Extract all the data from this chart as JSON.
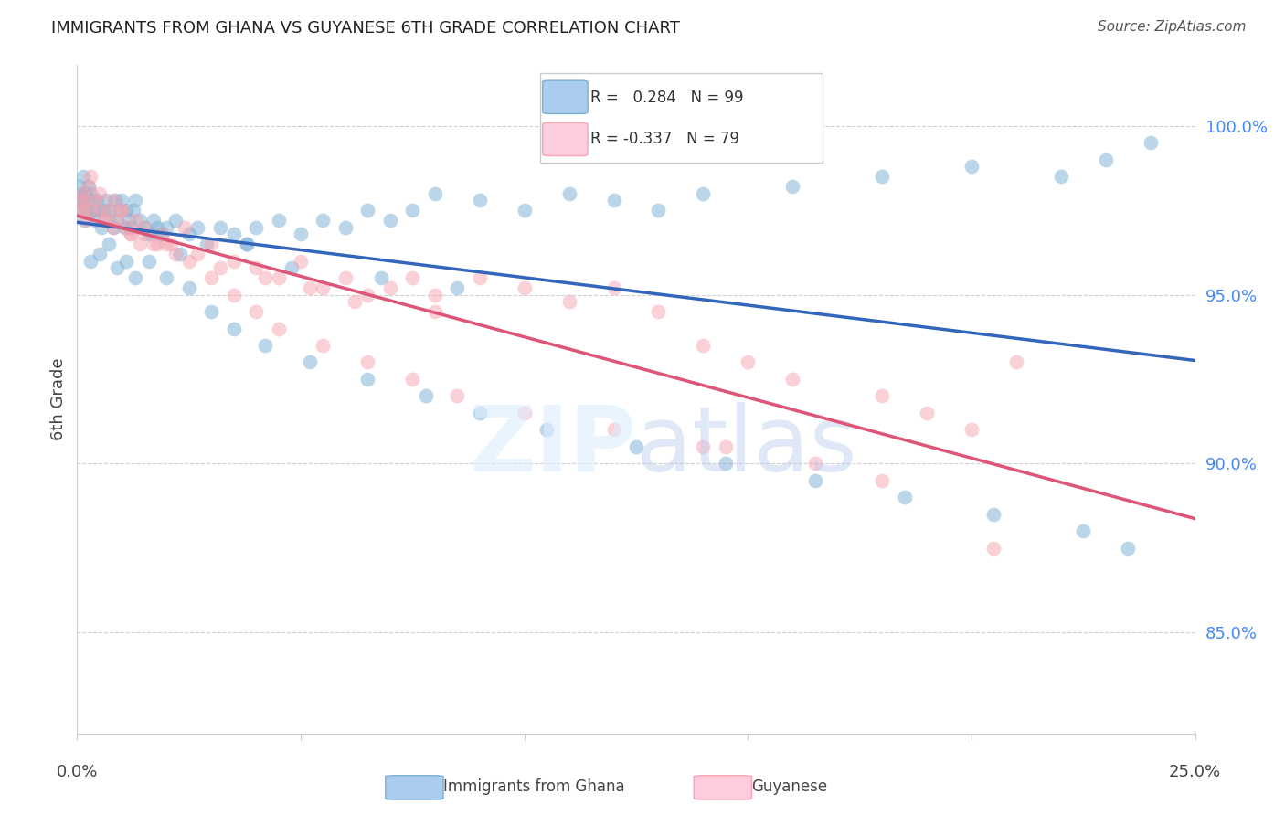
{
  "title": "IMMIGRANTS FROM GHANA VS GUYANESE 6TH GRADE CORRELATION CHART",
  "source": "Source: ZipAtlas.com",
  "ylabel": "6th Grade",
  "ylim": [
    82.0,
    101.8
  ],
  "xlim": [
    0.0,
    25.0
  ],
  "yticks": [
    85.0,
    90.0,
    95.0,
    100.0
  ],
  "legend_r_blue": "0.284",
  "legend_n_blue": "99",
  "legend_r_pink": "-0.337",
  "legend_n_pink": "79",
  "blue_scatter_color": "#7BAFD4",
  "pink_scatter_color": "#F4A4B0",
  "blue_line_color": "#3366BB",
  "pink_line_color": "#DD5577",
  "blue_x": [
    0.04,
    0.06,
    0.08,
    0.1,
    0.12,
    0.14,
    0.16,
    0.18,
    0.2,
    0.22,
    0.25,
    0.28,
    0.3,
    0.35,
    0.38,
    0.4,
    0.45,
    0.5,
    0.55,
    0.6,
    0.65,
    0.7,
    0.75,
    0.8,
    0.85,
    0.9,
    0.95,
    1.0,
    1.05,
    1.1,
    1.15,
    1.2,
    1.25,
    1.3,
    1.4,
    1.5,
    1.6,
    1.7,
    1.8,
    1.9,
    2.0,
    2.2,
    2.5,
    2.7,
    2.9,
    3.2,
    3.5,
    3.8,
    4.0,
    4.5,
    5.0,
    5.5,
    6.0,
    6.5,
    7.0,
    7.5,
    8.0,
    9.0,
    10.0,
    11.0,
    12.0,
    13.0,
    14.0,
    16.0,
    18.0,
    20.0,
    22.0,
    23.0,
    24.0,
    0.3,
    0.5,
    0.7,
    0.9,
    1.1,
    1.3,
    1.6,
    2.0,
    2.5,
    3.0,
    3.5,
    4.2,
    5.2,
    6.5,
    7.8,
    9.0,
    10.5,
    12.5,
    14.5,
    16.5,
    18.5,
    20.5,
    22.5,
    23.5,
    1.8,
    2.3,
    3.8,
    4.8,
    6.8,
    8.5
  ],
  "blue_y": [
    97.8,
    98.2,
    97.5,
    98.0,
    97.8,
    98.5,
    97.2,
    98.0,
    97.5,
    97.8,
    98.2,
    97.5,
    98.0,
    97.8,
    97.5,
    97.2,
    97.8,
    97.5,
    97.0,
    97.5,
    97.8,
    97.2,
    97.5,
    97.0,
    97.8,
    97.2,
    97.5,
    97.8,
    97.0,
    97.5,
    97.2,
    97.0,
    97.5,
    97.8,
    97.2,
    97.0,
    96.8,
    97.2,
    97.0,
    96.8,
    97.0,
    97.2,
    96.8,
    97.0,
    96.5,
    97.0,
    96.8,
    96.5,
    97.0,
    97.2,
    96.8,
    97.2,
    97.0,
    97.5,
    97.2,
    97.5,
    98.0,
    97.8,
    97.5,
    98.0,
    97.8,
    97.5,
    98.0,
    98.2,
    98.5,
    98.8,
    98.5,
    99.0,
    99.5,
    96.0,
    96.2,
    96.5,
    95.8,
    96.0,
    95.5,
    96.0,
    95.5,
    95.2,
    94.5,
    94.0,
    93.5,
    93.0,
    92.5,
    92.0,
    91.5,
    91.0,
    90.5,
    90.0,
    89.5,
    89.0,
    88.5,
    88.0,
    87.5,
    96.8,
    96.2,
    96.5,
    95.8,
    95.5,
    95.2
  ],
  "pink_x": [
    0.04,
    0.08,
    0.12,
    0.16,
    0.2,
    0.25,
    0.3,
    0.4,
    0.5,
    0.6,
    0.7,
    0.8,
    0.9,
    1.0,
    1.1,
    1.2,
    1.3,
    1.4,
    1.5,
    1.7,
    1.9,
    2.1,
    2.4,
    2.7,
    3.0,
    3.5,
    4.0,
    4.5,
    5.0,
    5.5,
    6.0,
    6.5,
    7.0,
    7.5,
    8.0,
    9.0,
    10.0,
    11.0,
    12.0,
    13.0,
    14.0,
    15.0,
    16.0,
    18.0,
    19.0,
    20.0,
    21.0,
    0.3,
    0.5,
    0.8,
    1.0,
    1.5,
    2.0,
    2.5,
    3.0,
    3.5,
    4.0,
    4.5,
    5.5,
    6.5,
    7.5,
    8.5,
    10.0,
    12.0,
    14.0,
    16.5,
    18.0,
    20.5,
    0.2,
    0.6,
    1.2,
    1.8,
    2.2,
    3.2,
    4.2,
    5.2,
    6.2,
    8.0,
    14.5
  ],
  "pink_y": [
    97.5,
    97.8,
    98.0,
    97.5,
    97.2,
    98.2,
    97.5,
    97.8,
    97.5,
    97.2,
    97.5,
    97.0,
    97.2,
    97.5,
    97.0,
    96.8,
    97.2,
    96.5,
    97.0,
    96.5,
    96.8,
    96.5,
    97.0,
    96.2,
    96.5,
    96.0,
    95.8,
    95.5,
    96.0,
    95.2,
    95.5,
    95.0,
    95.2,
    95.5,
    95.0,
    95.5,
    95.2,
    94.8,
    95.2,
    94.5,
    93.5,
    93.0,
    92.5,
    92.0,
    91.5,
    91.0,
    93.0,
    98.5,
    98.0,
    97.8,
    97.5,
    96.8,
    96.5,
    96.0,
    95.5,
    95.0,
    94.5,
    94.0,
    93.5,
    93.0,
    92.5,
    92.0,
    91.5,
    91.0,
    90.5,
    90.0,
    89.5,
    87.5,
    97.8,
    97.2,
    96.8,
    96.5,
    96.2,
    95.8,
    95.5,
    95.2,
    94.8,
    94.5,
    90.5
  ]
}
